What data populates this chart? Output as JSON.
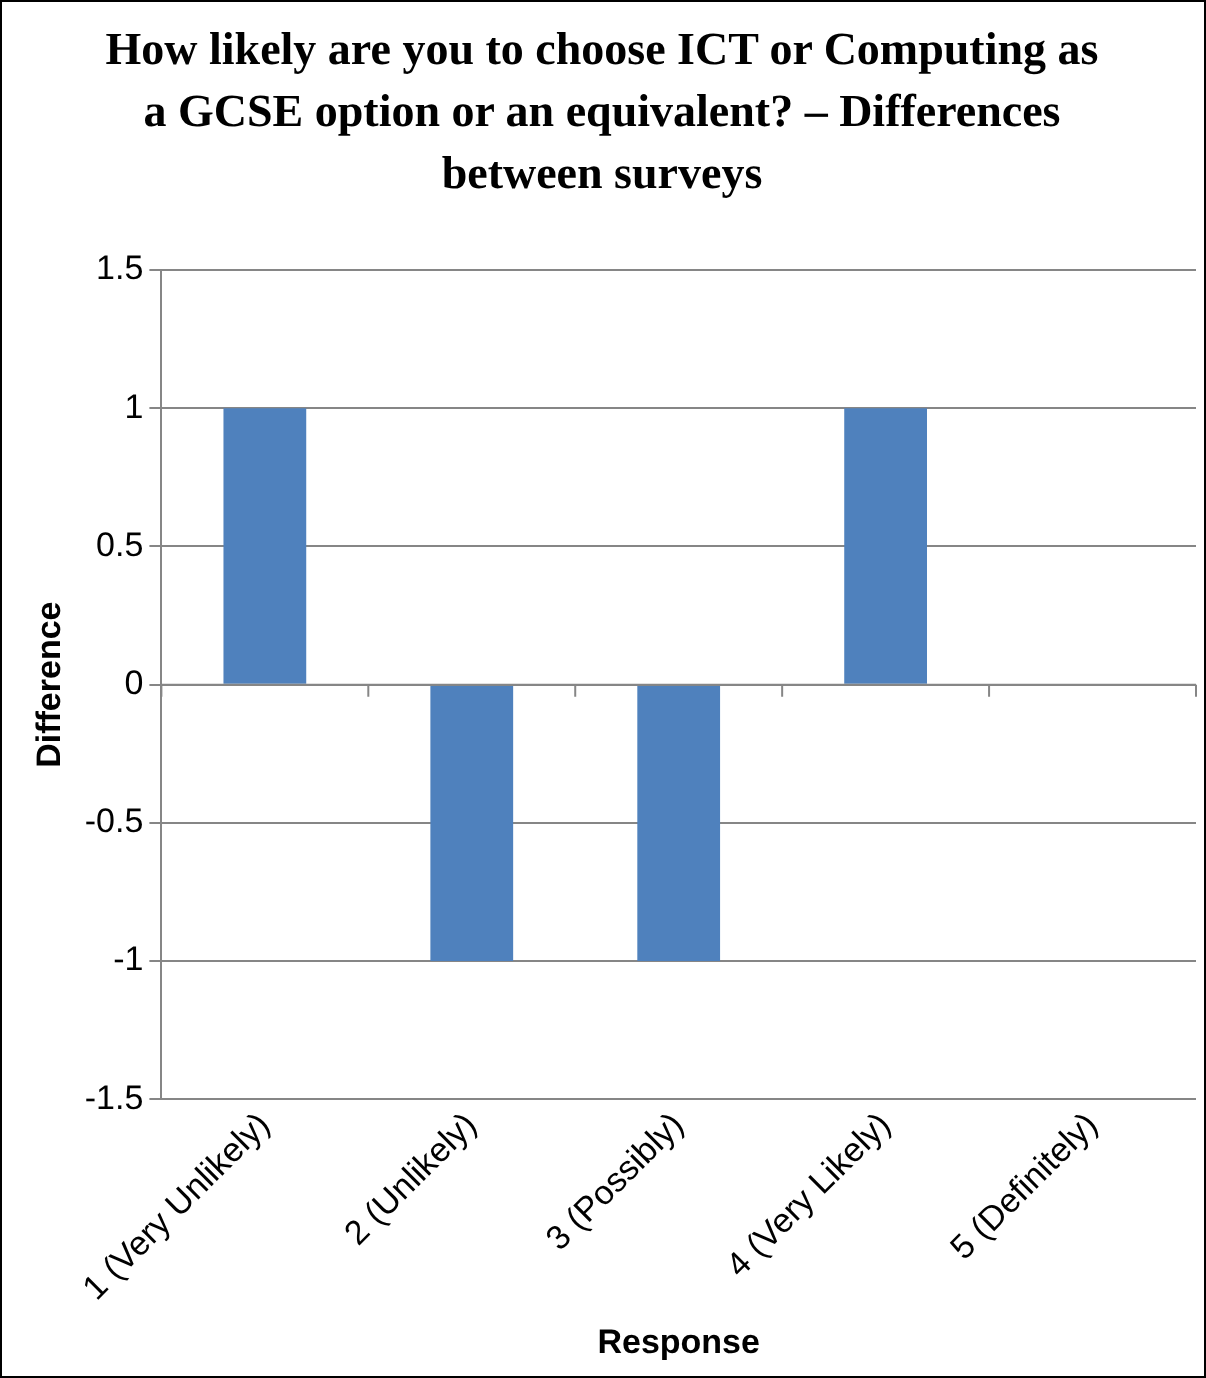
{
  "chart_data": {
    "type": "bar",
    "title": "How likely are you to choose ICT or Computing as a GCSE option or an equivalent? – Differences between surveys",
    "xlabel": "Response",
    "ylabel": "Difference",
    "categories": [
      "1 (Very Unlikely)",
      "2 (Unlikely)",
      "3 (Possibly)",
      "4 (Very Likely)",
      "5 (Definitely)"
    ],
    "values": [
      1,
      -1,
      -1,
      1,
      0
    ],
    "color": "#4f81bd",
    "ylim": [
      -1.5,
      1.5
    ],
    "yticks": [
      -1.5,
      -1,
      -0.5,
      0,
      0.5,
      1,
      1.5
    ],
    "grid": "y"
  }
}
